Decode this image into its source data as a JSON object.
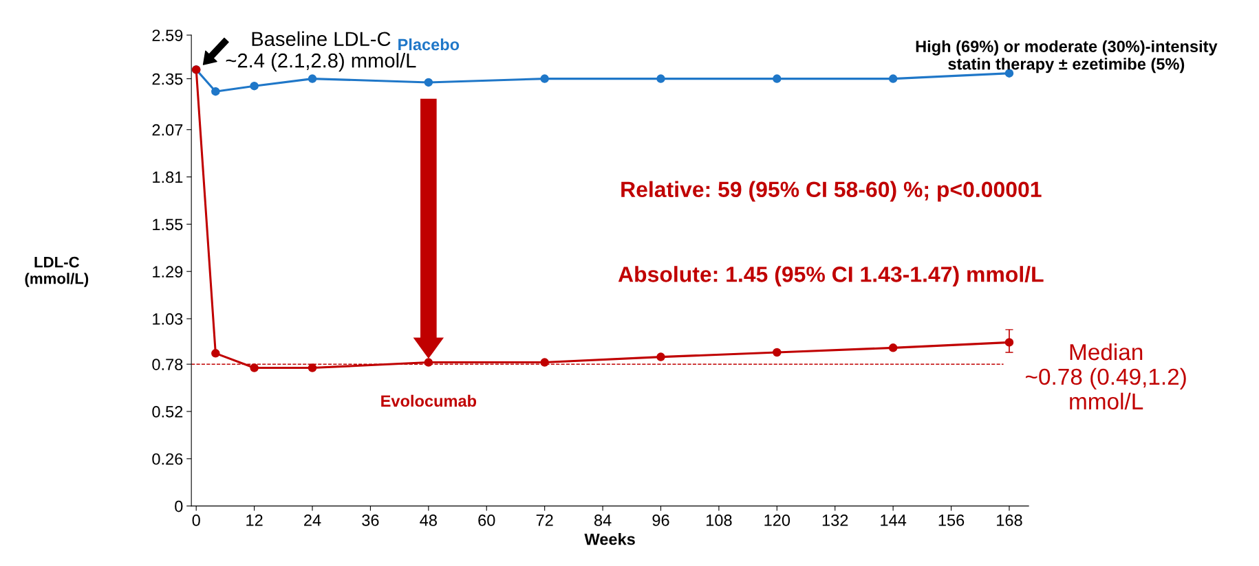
{
  "chart_data": {
    "type": "line",
    "xlabel": "Weeks",
    "ylabel": "LDL-C\n(mmol/L)",
    "x": [
      0,
      4,
      12,
      24,
      48,
      72,
      96,
      120,
      144,
      168
    ],
    "series": [
      {
        "name": "Placebo",
        "color": "#1f77c8",
        "values": [
          2.4,
          2.28,
          2.31,
          2.35,
          2.33,
          2.35,
          2.35,
          2.35,
          2.35,
          2.38
        ]
      },
      {
        "name": "Evolocumab",
        "color": "#c00000",
        "values": [
          2.4,
          0.84,
          0.76,
          0.76,
          0.79,
          0.79,
          0.82,
          0.845,
          0.87,
          0.9
        ],
        "errors": [
          null,
          null,
          null,
          null,
          null,
          null,
          null,
          null,
          null,
          [
            0.845,
            0.97
          ]
        ]
      }
    ],
    "xlim": [
      -1,
      172
    ],
    "xticks": [
      0,
      12,
      24,
      36,
      48,
      60,
      72,
      84,
      96,
      108,
      120,
      132,
      144,
      156,
      168
    ],
    "ylim": [
      0,
      2.59
    ],
    "yticks": [
      0,
      0.26,
      0.52,
      0.78,
      1.03,
      1.29,
      1.55,
      1.81,
      2.07,
      2.35,
      2.59
    ],
    "marker": "circle",
    "grid": false,
    "ref_lines": [
      {
        "axis": "y",
        "value": 0.78,
        "color": "#c00000",
        "line_style": "dashed"
      }
    ],
    "annotations": [
      {
        "text": "Baseline LDL-C\n~2.4 (2.1,2.8) mmol/L",
        "x": 0,
        "y": 2.4
      },
      "High (69%) or moderate (30%)-intensity\nstatin therapy ± ezetimibe (5%)",
      "Relative: 59 (95% CI 58-60) %; p<0.00001",
      "Absolute: 1.45 (95% CI 1.43-1.47) mmol/L",
      {
        "text": "Median\n~0.78 (0.49,1.2)\nmmol/L",
        "x": 168,
        "y": 0.9
      }
    ]
  }
}
